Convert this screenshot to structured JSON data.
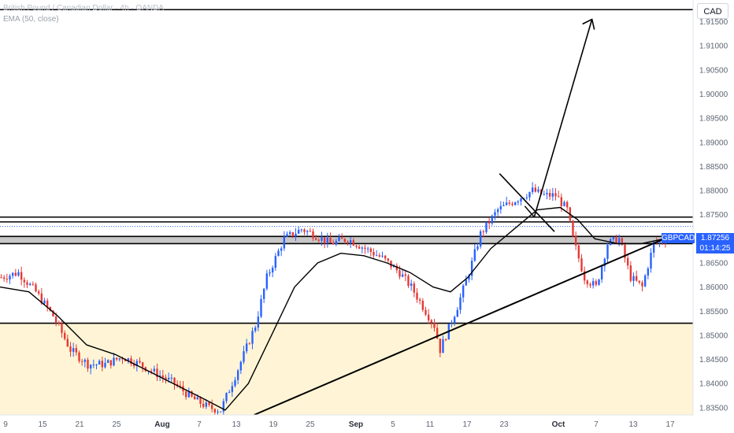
{
  "legend": {
    "title": "British Pound / Canadian Dollar · 4h · OANDA",
    "indicator": "EMA (50, close)"
  },
  "currency": "CAD",
  "symbol_label": "GBPCAD",
  "last_price": "1.87256",
  "countdown": "01:14:25",
  "colors": {
    "up": "#2962ff",
    "down": "#e53935",
    "ema": "#000000",
    "zone": "#fff5d6",
    "band": "#c8c8c8",
    "price_flag": "#2962ff"
  },
  "chart_data": {
    "type": "candlestick",
    "title": "British Pound / Canadian Dollar · 4h · OANDA",
    "symbol": "GBPCAD",
    "currency": "CAD",
    "timeframe": "4h",
    "ylim": [
      1.8335,
      1.9195
    ],
    "y_ticks": [
      "1.83500",
      "1.84000",
      "1.84500",
      "1.85000",
      "1.85500",
      "1.86000",
      "1.86500",
      "1.87000",
      "1.87500",
      "1.88000",
      "1.88500",
      "1.89000",
      "1.89500",
      "1.90000",
      "1.90500",
      "1.91000",
      "1.91500"
    ],
    "x_ticks": [
      "9",
      "15",
      "21",
      "25",
      "Aug",
      "7",
      "13",
      "19",
      "25",
      "Sep",
      "5",
      "11",
      "17",
      "23",
      "Oct",
      "7",
      "13",
      "17"
    ],
    "strong_x_ticks": [
      "Aug",
      "Sep",
      "Oct"
    ],
    "last_price": 1.87256,
    "trend_path": [
      [
        0,
        1.862
      ],
      [
        6,
        1.863
      ],
      [
        12,
        1.859
      ],
      [
        18,
        1.854
      ],
      [
        24,
        1.847
      ],
      [
        30,
        1.844
      ],
      [
        36,
        1.844
      ],
      [
        42,
        1.8455
      ],
      [
        48,
        1.844
      ],
      [
        54,
        1.842
      ],
      [
        60,
        1.84
      ],
      [
        66,
        1.837
      ],
      [
        72,
        1.835
      ],
      [
        76,
        1.8345
      ],
      [
        82,
        1.843
      ],
      [
        88,
        1.852
      ],
      [
        92,
        1.862
      ],
      [
        98,
        1.87
      ],
      [
        104,
        1.872
      ],
      [
        108,
        1.871
      ],
      [
        114,
        1.869
      ],
      [
        120,
        1.87
      ],
      [
        126,
        1.868
      ],
      [
        132,
        1.866
      ],
      [
        138,
        1.863
      ],
      [
        142,
        1.86
      ],
      [
        146,
        1.856
      ],
      [
        150,
        1.852
      ],
      [
        152,
        1.847
      ],
      [
        154,
        1.85
      ],
      [
        158,
        1.856
      ],
      [
        162,
        1.863
      ],
      [
        166,
        1.871
      ],
      [
        172,
        1.876
      ],
      [
        178,
        1.878
      ],
      [
        184,
        1.88
      ],
      [
        188,
        1.879
      ],
      [
        192,
        1.879
      ],
      [
        196,
        1.876
      ],
      [
        198,
        1.87
      ],
      [
        202,
        1.862
      ],
      [
        206,
        1.86
      ],
      [
        210,
        1.869
      ],
      [
        214,
        1.87
      ],
      [
        218,
        1.862
      ],
      [
        222,
        1.86
      ],
      [
        226,
        1.869
      ],
      [
        230,
        1.87
      ]
    ],
    "ema": {
      "name": "EMA (50, close)",
      "values": [
        [
          0,
          1.86
        ],
        [
          10,
          1.859
        ],
        [
          20,
          1.854
        ],
        [
          30,
          1.848
        ],
        [
          40,
          1.846
        ],
        [
          50,
          1.843
        ],
        [
          60,
          1.84
        ],
        [
          70,
          1.837
        ],
        [
          78,
          1.8345
        ],
        [
          86,
          1.84
        ],
        [
          94,
          1.85
        ],
        [
          102,
          1.86
        ],
        [
          110,
          1.865
        ],
        [
          118,
          1.867
        ],
        [
          126,
          1.8665
        ],
        [
          134,
          1.865
        ],
        [
          142,
          1.863
        ],
        [
          150,
          1.86
        ],
        [
          156,
          1.859
        ],
        [
          162,
          1.862
        ],
        [
          170,
          1.868
        ],
        [
          178,
          1.872
        ],
        [
          186,
          1.876
        ],
        [
          194,
          1.8765
        ],
        [
          200,
          1.874
        ],
        [
          206,
          1.87
        ],
        [
          214,
          1.869
        ],
        [
          222,
          1.869
        ],
        [
          230,
          1.87
        ]
      ]
    },
    "horizontal_levels": [
      1.9175,
      1.8745,
      1.8735,
      1.8705,
      1.869,
      1.8525
    ],
    "band": [
      1.869,
      1.8705
    ],
    "zone": [
      1.8335,
      1.8525
    ],
    "trendline_support": [
      [
        88,
        1.8335
      ],
      [
        232,
        1.8705
      ]
    ],
    "trendline_resistance": [
      [
        173,
        1.8835
      ],
      [
        192,
        1.8715
      ]
    ],
    "projection_arrow": [
      [
        185,
        1.8745
      ],
      [
        205,
        1.9155
      ]
    ],
    "grid": false,
    "legend_position": "top-left"
  }
}
